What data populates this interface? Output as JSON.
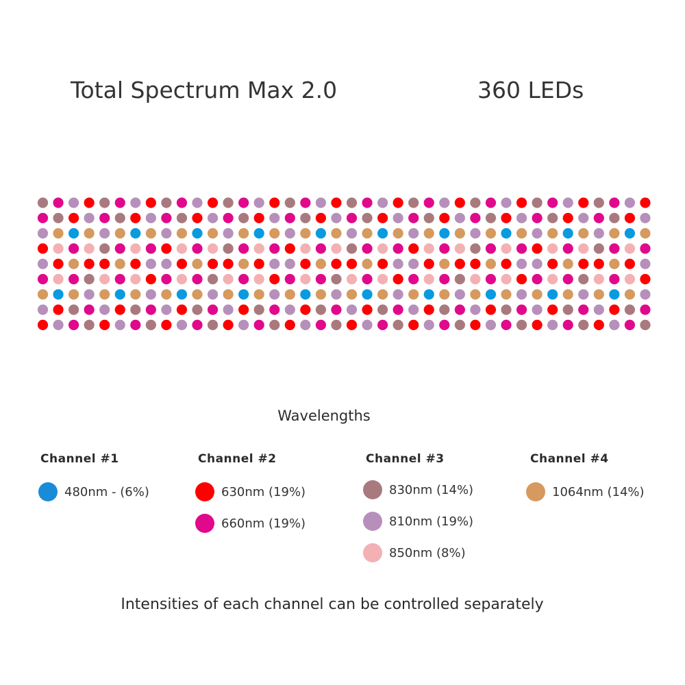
{
  "header": {
    "product": "Total Spectrum Max 2.0",
    "led_count": "360 LEDs"
  },
  "colors": {
    "B": "#0a9ae0",
    "R": "#ff0000",
    "M": "#e0098c",
    "D": "#a87a7e",
    "L": "#b690ba",
    "P": "#f3b1b3",
    "T": "#d69a5e"
  },
  "led_grid": [
    "DMLRDMLRDMLRDMLRDMLRDMLRDMLRDMLRDMLRDMLR",
    "MDRLMDRLMDRLMDRLMDRLMDRLMDRLMDRLMDRLMDRL",
    "LTBTLTBTLTBTLTBTLTBTLTBTLTBTLTBTLTBTLTBT",
    "RPMPDMPMRPMPDMPMRPMPDMPMRPMPDMPMRPMPDMPM",
    "LRTRRTRLLRTRRTRLLRTRRTRLLRTRRTRLLRTRRTRL",
    "MPMDPMPRMPMDPMPRMPMDPMPRMPMDPMPRMPMDPMPR",
    "TBTLTBTLTBTLTBTLTBTLTBTLTBTLTBTLTBTLTBTL",
    "LRDMLRDMLRDMLRDMLRDMLRDMLRDMLRDMLRDMLRDM",
    "RLMDRLMDRLMDRLMDRLMDRLMDRLMDRLMDRLMDRLMD"
  ],
  "legend": {
    "title": "Wavelengths",
    "channels": [
      {
        "label": "Channel #1",
        "items": [
          {
            "text": "480nm - (6%)",
            "color": "#1a8bd6"
          }
        ]
      },
      {
        "label": "Channel #2",
        "items": [
          {
            "text": "630nm (19%)",
            "color": "#ff0000"
          },
          {
            "text": "660nm (19%)",
            "color": "#e0098c"
          }
        ]
      },
      {
        "label": "Channel #3",
        "items": [
          {
            "text": "830nm (14%)",
            "color": "#a87a7e"
          },
          {
            "text": "810nm (19%)",
            "color": "#b690ba"
          },
          {
            "text": "850nm (8%)",
            "color": "#f3b1b3"
          }
        ]
      },
      {
        "label": "Channel #4",
        "items": [
          {
            "text": "1064nm (14%)",
            "color": "#d69a5e"
          }
        ]
      }
    ]
  },
  "footer": "Intensities of each channel can be controlled separately"
}
